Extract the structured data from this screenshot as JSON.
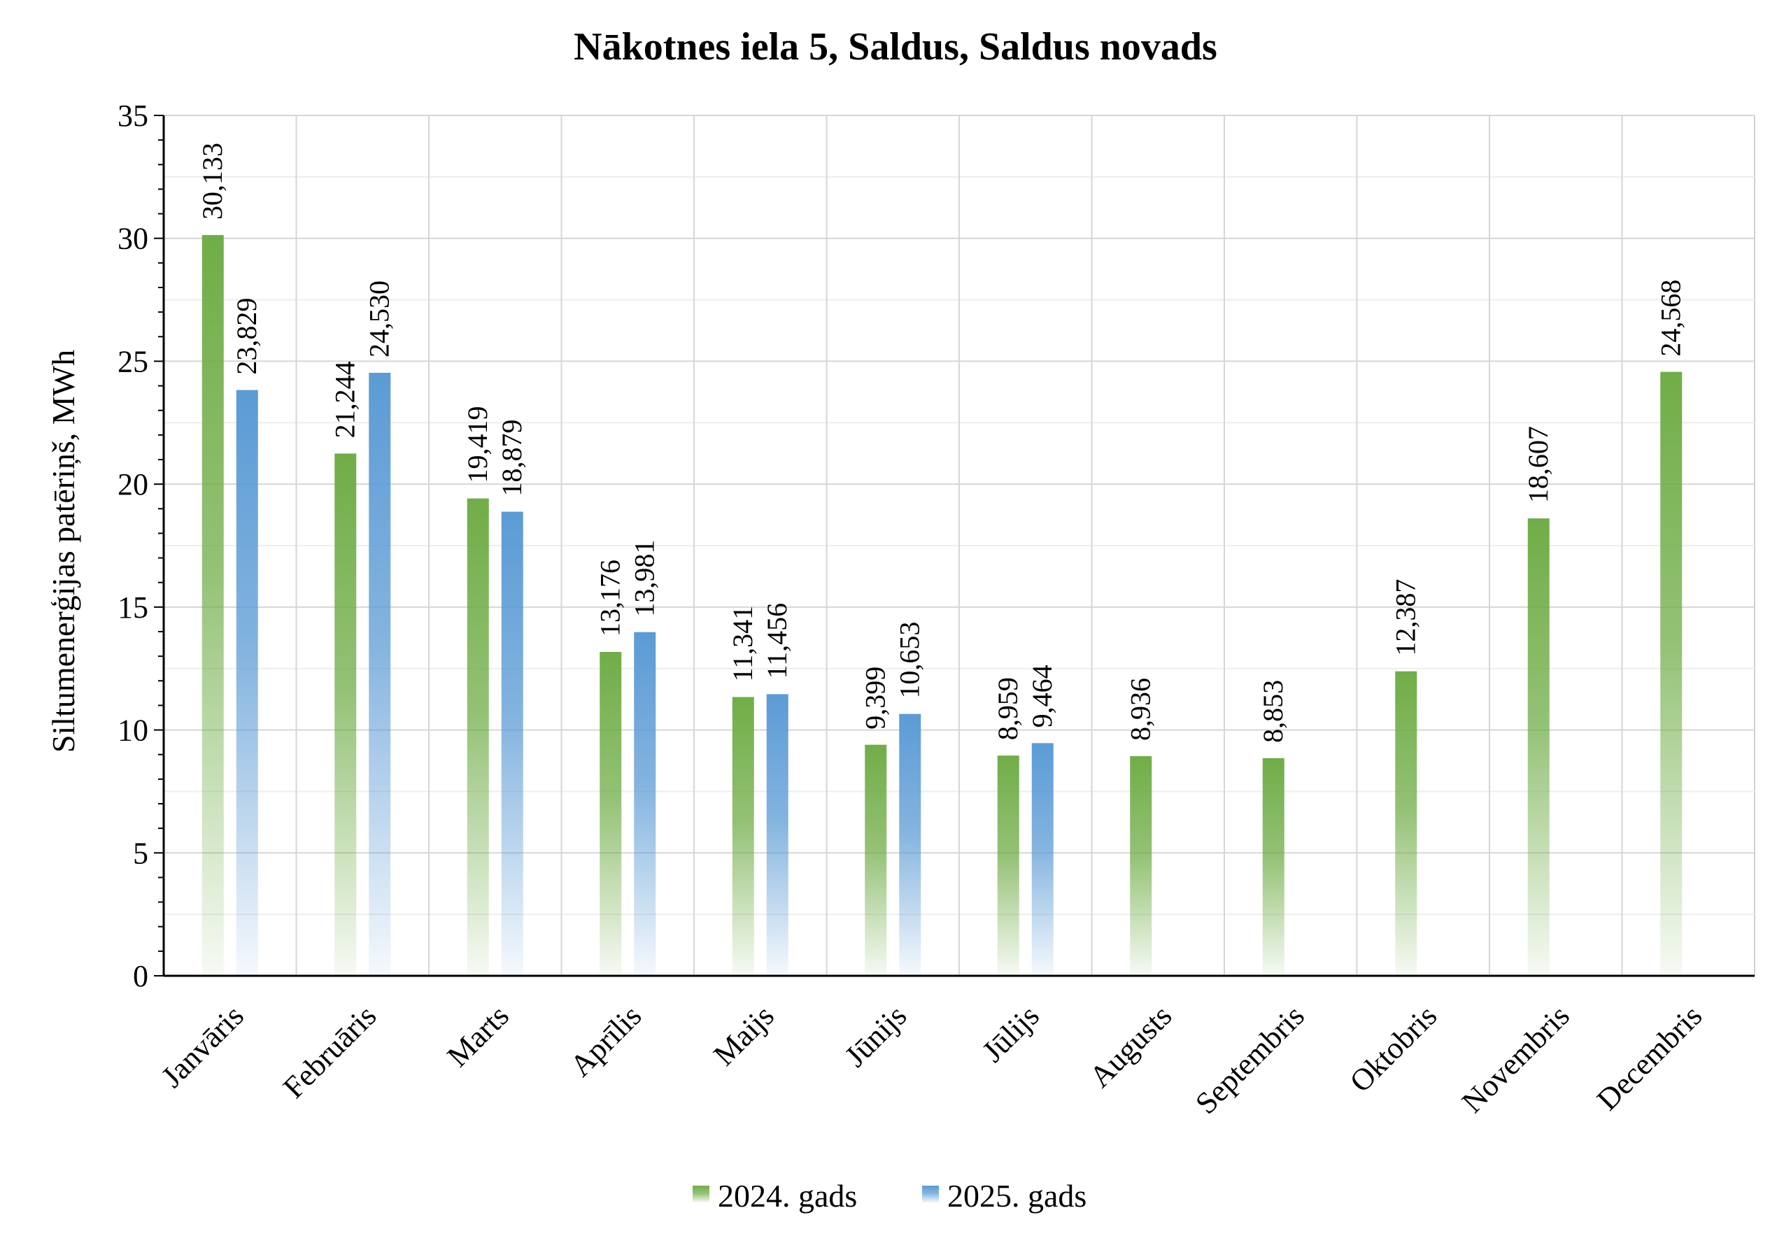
{
  "chart_data": {
    "type": "bar",
    "title": "Nākotnes iela 5, Saldus, Saldus novads",
    "ylabel": "Siltumenerģijas patēriņš, MWh",
    "xlabel": "",
    "ylim": [
      0,
      35
    ],
    "yticks": [
      "0",
      "5",
      "10",
      "15",
      "20",
      "25",
      "30",
      "35"
    ],
    "grid": true,
    "legend_position": "bottom",
    "categories": [
      "Janvāris",
      "Februāris",
      "Marts",
      "Aprīlis",
      "Maijs",
      "Jūnijs",
      "Jūlijs",
      "Augusts",
      "Septembris",
      "Oktobris",
      "Novembris",
      "Decembris"
    ],
    "series": [
      {
        "name": "2024. gads",
        "color": "#70AD47",
        "values": [
          30.133,
          21.244,
          19.419,
          13.176,
          11.341,
          9.399,
          8.959,
          8.936,
          8.853,
          12.387,
          18.607,
          24.568
        ],
        "labels": [
          "30,133",
          "21,244",
          "19,419",
          "13,176",
          "11,341",
          "9,399",
          "8,959",
          "8,936",
          "8,853",
          "12,387",
          "18,607",
          "24,568"
        ]
      },
      {
        "name": "2025. gads",
        "color": "#5B9BD5",
        "values": [
          23.829,
          24.53,
          18.879,
          13.981,
          11.456,
          10.653,
          9.464,
          null,
          null,
          null,
          null,
          null
        ],
        "labels": [
          "23,829",
          "24,530",
          "18,879",
          "13,981",
          "11,456",
          "10,653",
          "9,464",
          null,
          null,
          null,
          null,
          null
        ]
      }
    ]
  }
}
